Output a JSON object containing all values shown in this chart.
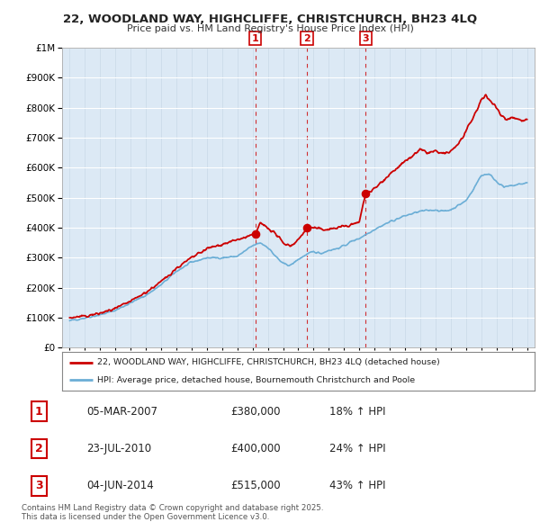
{
  "title_line1": "22, WOODLAND WAY, HIGHCLIFFE, CHRISTCHURCH, BH23 4LQ",
  "title_line2": "Price paid vs. HM Land Registry's House Price Index (HPI)",
  "ytick_values": [
    0,
    100000,
    200000,
    300000,
    400000,
    500000,
    600000,
    700000,
    800000,
    900000,
    1000000
  ],
  "hpi_color": "#6baed6",
  "price_color": "#cc0000",
  "bg_color": "#ffffff",
  "plot_bg_color": "#dce9f5",
  "grid_color": "#ffffff",
  "sale_dates_num": [
    2007.17,
    2010.56,
    2014.42
  ],
  "sale_prices": [
    380000,
    400000,
    515000
  ],
  "sale_labels": [
    "1",
    "2",
    "3"
  ],
  "sale_table": [
    {
      "num": "1",
      "date": "05-MAR-2007",
      "price": "£380,000",
      "pct": "18% ↑ HPI"
    },
    {
      "num": "2",
      "date": "23-JUL-2010",
      "price": "£400,000",
      "pct": "24% ↑ HPI"
    },
    {
      "num": "3",
      "date": "04-JUN-2014",
      "price": "£515,000",
      "pct": "43% ↑ HPI"
    }
  ],
  "legend_line1": "22, WOODLAND WAY, HIGHCLIFFE, CHRISTCHURCH, BH23 4LQ (detached house)",
  "legend_line2": "HPI: Average price, detached house, Bournemouth Christchurch and Poole",
  "footer": "Contains HM Land Registry data © Crown copyright and database right 2025.\nThis data is licensed under the Open Government Licence v3.0.",
  "xmin": 1994.5,
  "xmax": 2025.5,
  "ymin": 0,
  "ymax": 1000000
}
